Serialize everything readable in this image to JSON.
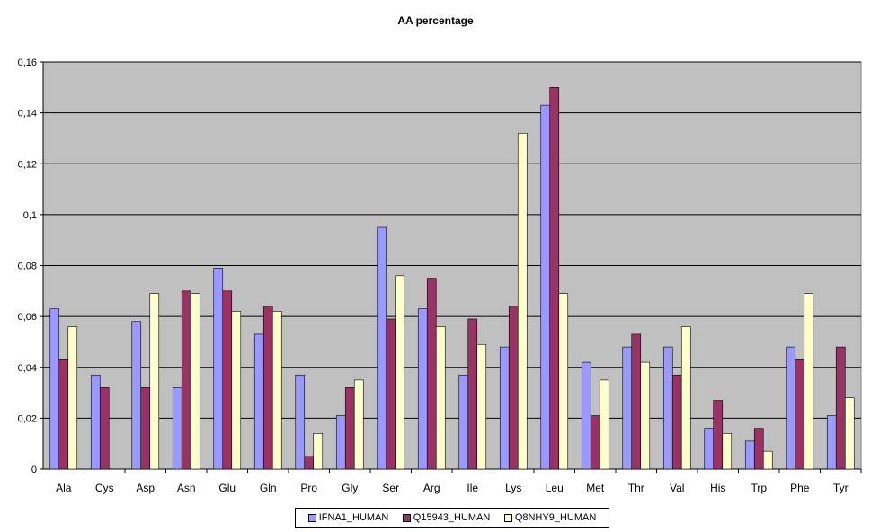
{
  "chart_data": {
    "type": "bar",
    "title": "AA percentage",
    "xlabel": "",
    "ylabel": "",
    "ylim": [
      0,
      0.16
    ],
    "yticks": [
      "0",
      "0,02",
      "0,04",
      "0,06",
      "0,08",
      "0,1",
      "0,12",
      "0,14",
      "0,16"
    ],
    "grid": true,
    "legend_position": "bottom",
    "plot_background": "#c0c0c0",
    "categories": [
      "Ala",
      "Cys",
      "Asp",
      "Asn",
      "Glu",
      "Gln",
      "Pro",
      "Gly",
      "Ser",
      "Arg",
      "Ile",
      "Lys",
      "Leu",
      "Met",
      "Thr",
      "Val",
      "His",
      "Trp",
      "Phe",
      "Tyr"
    ],
    "series": [
      {
        "name": "IFNA1_HUMAN",
        "color": "#9999ff",
        "values": [
          0.063,
          0.037,
          0.058,
          0.032,
          0.079,
          0.053,
          0.037,
          0.021,
          0.095,
          0.063,
          0.037,
          0.048,
          0.143,
          0.042,
          0.048,
          0.048,
          0.016,
          0.011,
          0.048,
          0.021
        ]
      },
      {
        "name": "Q15943_HUMAN",
        "color": "#993366",
        "values": [
          0.043,
          0.032,
          0.032,
          0.07,
          0.07,
          0.064,
          0.005,
          0.032,
          0.059,
          0.075,
          0.059,
          0.064,
          0.15,
          0.021,
          0.053,
          0.037,
          0.027,
          0.016,
          0.043,
          0.048
        ]
      },
      {
        "name": "Q8NHY9_HUMAN",
        "color": "#ffffcc",
        "values": [
          0.056,
          0.0,
          0.069,
          0.069,
          0.062,
          0.062,
          0.014,
          0.035,
          0.076,
          0.056,
          0.049,
          0.132,
          0.069,
          0.035,
          0.042,
          0.056,
          0.014,
          0.007,
          0.069,
          0.028
        ]
      }
    ]
  }
}
